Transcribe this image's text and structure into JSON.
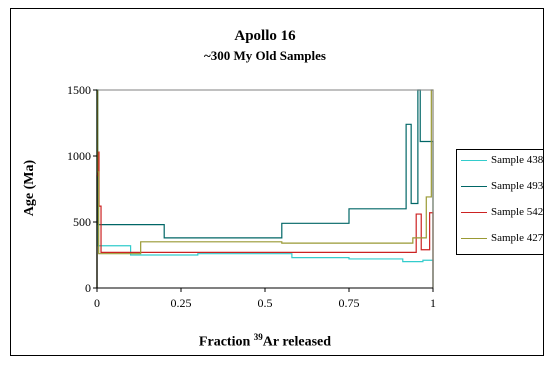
{
  "chart_data": {
    "type": "line",
    "title": "Apollo 16",
    "subtitle": "~300 My Old Samples",
    "xlabel_prefix": "Fraction ",
    "xlabel_sup": "39",
    "xlabel_suffix": "Ar released",
    "ylabel": "Age (Ma)",
    "xlim": [
      0,
      1
    ],
    "ylim": [
      0,
      1500
    ],
    "xticks": [
      0,
      0.25,
      0.5,
      0.75,
      1
    ],
    "xtick_labels": [
      "0",
      "0.25",
      "0.5",
      "0.75",
      "1"
    ],
    "yticks": [
      0,
      500,
      1000,
      1500
    ],
    "ytick_labels": [
      "0",
      "500",
      "1000",
      "1500"
    ],
    "grid": false,
    "legend_position": "right",
    "series": [
      {
        "name": "Sample 438",
        "color": "#33CCCC",
        "steps": [
          [
            0,
            0.002,
            1500
          ],
          [
            0.002,
            0.1,
            320
          ],
          [
            0.1,
            0.3,
            250
          ],
          [
            0.3,
            0.58,
            260
          ],
          [
            0.58,
            0.75,
            230
          ],
          [
            0.75,
            0.91,
            220
          ],
          [
            0.91,
            0.97,
            200
          ],
          [
            0.97,
            1.0,
            210
          ]
        ]
      },
      {
        "name": "Sample 493",
        "color": "#006666",
        "steps": [
          [
            0,
            0.002,
            1500
          ],
          [
            0.002,
            0.2,
            480
          ],
          [
            0.2,
            0.55,
            380
          ],
          [
            0.55,
            0.75,
            490
          ],
          [
            0.75,
            0.92,
            600
          ],
          [
            0.92,
            0.935,
            1240
          ],
          [
            0.935,
            0.955,
            640
          ],
          [
            0.955,
            0.962,
            1500
          ],
          [
            0.962,
            1.0,
            1110
          ]
        ]
      },
      {
        "name": "Sample 542",
        "color": "#CC2222",
        "steps": [
          [
            0,
            0.003,
            850
          ],
          [
            0.003,
            0.006,
            1030
          ],
          [
            0.006,
            0.012,
            620
          ],
          [
            0.012,
            0.95,
            270
          ],
          [
            0.95,
            0.965,
            560
          ],
          [
            0.965,
            0.99,
            290
          ],
          [
            0.99,
            1.0,
            570
          ]
        ]
      },
      {
        "name": "Sample 427",
        "color": "#999933",
        "steps": [
          [
            0,
            0.002,
            1500
          ],
          [
            0.002,
            0.005,
            880
          ],
          [
            0.005,
            0.13,
            260
          ],
          [
            0.13,
            0.55,
            350
          ],
          [
            0.55,
            0.94,
            340
          ],
          [
            0.94,
            0.98,
            380
          ],
          [
            0.98,
            0.995,
            690
          ],
          [
            0.995,
            1.0,
            1500
          ]
        ]
      }
    ]
  }
}
